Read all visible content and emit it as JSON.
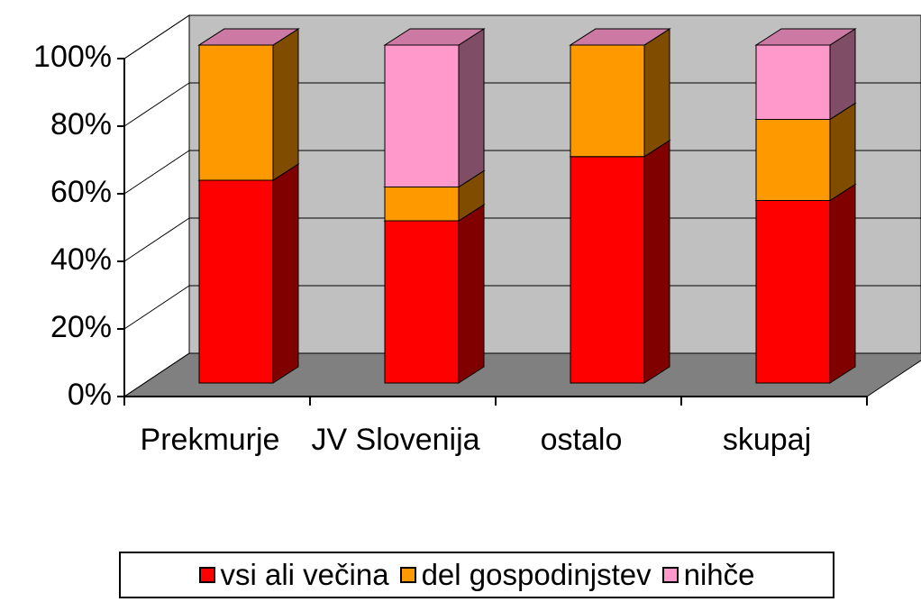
{
  "chart_data": {
    "type": "bar3d_stacked",
    "categories": [
      "Prekmurje",
      "JV Slovenija",
      "ostalo",
      "skupaj"
    ],
    "series": [
      {
        "name": "vsi ali večina",
        "color": "#ff0000",
        "values": [
          60,
          48,
          67,
          54
        ]
      },
      {
        "name": "del gospodinjstev",
        "color": "#ff9900",
        "values": [
          40,
          10,
          33,
          24
        ]
      },
      {
        "name": "nihče",
        "color": "#ff99cc",
        "values": [
          0,
          42,
          0,
          22
        ]
      }
    ],
    "ylim": [
      0,
      100
    ],
    "yticks": [
      {
        "value": 0,
        "label": "0%"
      },
      {
        "value": 20,
        "label": "20%"
      },
      {
        "value": 40,
        "label": "40%"
      },
      {
        "value": 60,
        "label": "60%"
      },
      {
        "value": 80,
        "label": "80%"
      },
      {
        "value": 100,
        "label": "100%"
      }
    ],
    "grid": true
  }
}
